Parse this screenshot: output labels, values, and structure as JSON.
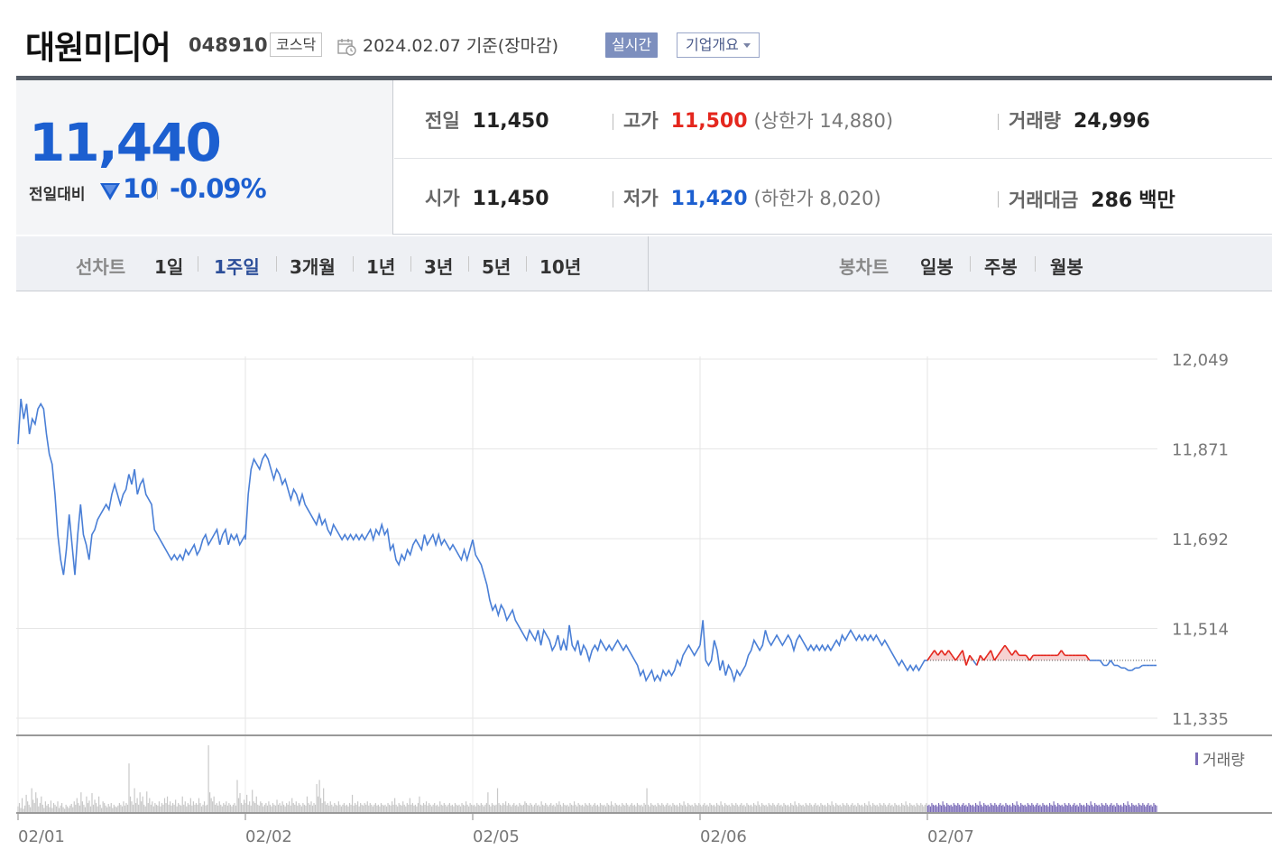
{
  "header": {
    "company_name": "대원미디어",
    "stock_code": "048910",
    "market": "코스닥",
    "date_text": "2024.02.07  기준(장마감)",
    "realtime_label": "실시간",
    "overview_label": "기업개요"
  },
  "summary": {
    "current_price": "11,440",
    "change_label": "전일대비",
    "change_amount": "10",
    "change_rate": "-0.09%",
    "prev_close_label": "전일",
    "prev_close": "11,450",
    "high_label": "고가",
    "high": "11,500",
    "upper_limit": "(상한가 14,880)",
    "volume_label": "거래량",
    "volume": "24,996",
    "open_label": "시가",
    "open": "11,450",
    "low_label": "저가",
    "low": "11,420",
    "lower_limit": "(하한가 8,020)",
    "trade_value_label": "거래대금",
    "trade_value": "286",
    "trade_value_unit": "백만",
    "colors": {
      "up": "#e4271e",
      "down": "#1c5fd0"
    }
  },
  "tabs": {
    "line_chart_label": "선차트",
    "line_periods": [
      "1일",
      "1주일",
      "3개월",
      "1년",
      "3년",
      "5년",
      "10년"
    ],
    "active_period": "1주일",
    "candle_chart_label": "봉차트",
    "candle_periods": [
      "일봉",
      "주봉",
      "월봉"
    ]
  },
  "chart_data": {
    "type": "line",
    "x_ticks": [
      "02/01",
      "02/02",
      "02/05",
      "02/06",
      "02/07"
    ],
    "y_ticks": [
      "12,049",
      "11,871",
      "11,692",
      "11,514",
      "11,335"
    ],
    "ylim": [
      11335,
      12049
    ],
    "prev_close": 11450,
    "grid": true,
    "volume_legend": "거래량",
    "colors": {
      "line": "#4a7fd6",
      "up": "#e4271e",
      "up_fill": "#f6d2d2",
      "volume": "#c8c8c8",
      "volume_today": "#7b6cb8"
    },
    "days": [
      {
        "label": "02/01",
        "prices": [
          11880,
          11970,
          11930,
          11960,
          11900,
          11930,
          11920,
          11950,
          11960,
          11950,
          11900,
          11860,
          11840,
          11780,
          11700,
          11650,
          11620,
          11670,
          11740,
          11680,
          11620,
          11700,
          11760,
          11700,
          11680,
          11650,
          11700,
          11710,
          11730,
          11740,
          11750,
          11760,
          11750,
          11780,
          11800,
          11780,
          11760,
          11780,
          11790,
          11820,
          11800,
          11830,
          11780,
          11800,
          11810,
          11780,
          11770,
          11760,
          11710,
          11700,
          11690,
          11680,
          11670,
          11660,
          11650,
          11660,
          11650,
          11660,
          11650,
          11670,
          11660,
          11670,
          11680,
          11660,
          11670,
          11690,
          11700,
          11680,
          11690,
          11700,
          11710,
          11680,
          11700,
          11710,
          11680,
          11700,
          11690,
          11700,
          11680,
          11690,
          11700
        ]
      },
      {
        "label": "02/02",
        "prices": [
          11690,
          11780,
          11830,
          11850,
          11840,
          11830,
          11850,
          11860,
          11850,
          11830,
          11810,
          11830,
          11820,
          11800,
          11810,
          11790,
          11770,
          11790,
          11780,
          11760,
          11780,
          11760,
          11750,
          11740,
          11730,
          11720,
          11740,
          11720,
          11730,
          11710,
          11700,
          11720,
          11710,
          11700,
          11690,
          11700,
          11690,
          11700,
          11690,
          11700,
          11690,
          11700,
          11690,
          11700,
          11710,
          11690,
          11710,
          11700,
          11720,
          11700,
          11710,
          11670,
          11680,
          11650,
          11640,
          11660,
          11650,
          11670,
          11660,
          11680,
          11690,
          11680,
          11670,
          11700,
          11680,
          11690,
          11700,
          11680,
          11700,
          11680,
          11690,
          11680,
          11670,
          11680,
          11670,
          11660,
          11650,
          11670,
          11650,
          11670,
          11690
        ]
      },
      {
        "label": "02/05",
        "prices": [
          11690,
          11660,
          11650,
          11640,
          11620,
          11600,
          11570,
          11550,
          11560,
          11540,
          11560,
          11550,
          11530,
          11540,
          11550,
          11530,
          11520,
          11510,
          11500,
          11490,
          11510,
          11500,
          11490,
          11510,
          11480,
          11510,
          11500,
          11490,
          11470,
          11480,
          11500,
          11470,
          11490,
          11470,
          11520,
          11480,
          11470,
          11490,
          11460,
          11480,
          11470,
          11450,
          11470,
          11480,
          11470,
          11490,
          11480,
          11470,
          11480,
          11470,
          11480,
          11490,
          11480,
          11470,
          11480,
          11470,
          11460,
          11450,
          11440,
          11420,
          11430,
          11410,
          11420,
          11430,
          11410,
          11420,
          11410,
          11430,
          11420,
          11430,
          11420,
          11430,
          11450,
          11440,
          11460,
          11470,
          11480,
          11470,
          11460,
          11470,
          11480
        ]
      },
      {
        "label": "02/06",
        "prices": [
          11480,
          11530,
          11450,
          11440,
          11450,
          11490,
          11470,
          11430,
          11450,
          11420,
          11440,
          11430,
          11410,
          11430,
          11420,
          11430,
          11440,
          11460,
          11470,
          11490,
          11480,
          11470,
          11480,
          11510,
          11490,
          11480,
          11490,
          11500,
          11490,
          11480,
          11490,
          11500,
          11490,
          11470,
          11490,
          11500,
          11490,
          11480,
          11470,
          11480,
          11470,
          11480,
          11470,
          11480,
          11470,
          11480,
          11470,
          11480,
          11490,
          11480,
          11500,
          11490,
          11500,
          11510,
          11500,
          11490,
          11500,
          11490,
          11500,
          11490,
          11500,
          11490,
          11500,
          11490,
          11480,
          11490,
          11480,
          11470,
          11460,
          11450,
          11440,
          11450,
          11440,
          11430,
          11440,
          11430,
          11440,
          11430,
          11440,
          11450,
          11450
        ]
      },
      {
        "label": "02/07",
        "prices": [
          11450,
          11460,
          11470,
          11460,
          11470,
          11460,
          11470,
          11460,
          11450,
          11460,
          11470,
          11440,
          11460,
          11450,
          11440,
          11460,
          11450,
          11460,
          11470,
          11450,
          11460,
          11470,
          11480,
          11470,
          11460,
          11470,
          11460,
          11460,
          11460,
          11450,
          11460,
          11460,
          11460,
          11460,
          11460,
          11460,
          11460,
          11460,
          11470,
          11460,
          11460,
          11460,
          11460,
          11460,
          11460,
          11460,
          11450,
          11450,
          11450,
          11450,
          11440,
          11440,
          11450,
          11440,
          11440,
          11435,
          11435,
          11430,
          11430,
          11435,
          11435,
          11440,
          11440,
          11440,
          11440,
          11440
        ]
      }
    ],
    "volume": [
      8,
      12,
      6,
      18,
      5,
      9,
      22,
      14,
      10,
      7,
      30,
      16,
      12,
      25,
      18,
      8,
      12,
      20,
      10,
      6,
      14,
      9,
      11,
      7,
      15,
      6,
      12,
      10,
      8,
      14,
      6,
      9,
      12,
      7,
      5,
      10,
      8,
      6,
      9,
      11,
      7,
      14,
      10,
      18,
      12,
      9,
      25,
      14,
      10,
      7,
      20,
      12,
      15,
      8,
      24,
      10,
      16,
      12,
      8,
      20,
      10,
      6,
      14,
      12,
      9,
      7,
      11,
      8,
      12,
      6,
      10,
      8,
      7,
      9,
      12,
      10,
      8,
      14,
      9,
      12,
      10,
      60,
      20,
      14,
      10,
      30,
      12,
      18,
      10,
      25,
      14,
      20,
      10,
      8,
      26,
      12,
      18,
      10,
      14,
      8,
      12,
      10,
      9,
      14,
      8,
      12,
      10,
      18,
      12,
      20,
      10,
      14,
      9,
      12,
      10,
      16,
      8,
      12,
      10,
      9,
      20,
      10,
      14,
      8,
      12,
      10,
      18,
      9,
      14,
      10,
      12,
      10,
      18,
      12,
      8,
      10,
      14,
      9,
      10,
      82,
      25,
      18,
      14,
      20,
      10,
      12,
      9,
      14,
      10,
      8,
      12,
      10,
      14,
      9,
      12,
      10,
      8,
      10,
      12,
      9,
      40,
      18,
      24,
      12,
      10,
      16,
      12,
      22,
      10,
      14,
      9,
      28,
      14,
      12,
      20,
      10,
      9,
      14,
      12,
      8,
      10,
      12,
      9,
      14,
      10,
      8,
      12,
      10,
      9,
      16,
      10,
      12,
      9,
      14,
      10,
      8,
      12,
      10,
      14,
      9,
      18,
      12,
      10,
      14,
      9,
      12,
      10,
      8,
      12,
      10,
      9,
      20,
      12,
      10,
      14,
      9,
      12,
      10,
      35,
      20,
      40,
      18,
      12,
      30,
      14,
      10,
      12,
      9,
      14,
      10,
      8,
      12,
      10,
      9,
      14,
      10,
      8,
      10,
      12,
      9,
      10,
      8,
      12,
      10,
      22,
      9,
      12,
      10,
      14,
      8,
      12,
      10,
      9,
      12,
      10,
      14,
      9,
      12,
      10,
      8,
      10,
      12,
      9,
      10,
      8,
      12,
      10,
      9,
      10,
      8,
      12,
      10,
      9,
      14,
      10,
      18,
      10,
      8,
      12,
      10,
      9,
      14,
      10,
      8,
      12,
      10,
      18,
      10,
      12,
      9,
      10,
      8,
      12,
      20,
      10,
      9,
      12,
      10,
      14,
      9,
      12,
      10,
      8,
      10,
      12,
      9,
      10,
      8,
      14,
      10,
      9,
      12,
      10,
      8,
      10,
      12,
      9,
      10,
      8,
      12,
      10,
      9,
      10,
      8,
      12,
      10,
      9,
      14,
      10,
      8,
      12,
      10,
      9,
      10,
      8,
      12,
      10,
      9,
      12,
      10,
      8,
      10,
      12,
      25,
      10,
      8,
      12,
      10,
      9,
      10,
      30,
      12,
      10,
      9,
      12,
      10,
      14,
      9,
      12,
      10,
      8,
      10,
      12,
      9,
      10,
      8,
      12,
      10,
      9,
      10,
      14,
      12,
      10,
      9,
      12,
      10,
      8,
      10,
      12,
      9,
      10,
      8,
      14,
      10,
      9,
      12,
      10,
      8,
      10,
      12,
      9,
      10,
      8,
      12,
      10,
      14,
      10,
      8,
      12,
      10,
      9,
      10,
      8,
      12,
      10,
      9,
      14,
      10,
      8,
      12,
      10,
      9,
      10,
      8,
      12,
      10,
      9,
      12,
      10,
      8,
      10,
      12,
      9,
      10,
      8,
      12,
      10,
      9,
      10,
      8,
      12,
      10,
      9,
      14,
      10,
      8,
      12,
      10,
      9,
      10,
      8,
      12,
      10,
      9,
      12,
      10,
      8,
      10,
      12,
      9,
      10,
      8,
      12,
      10,
      9,
      10,
      8,
      12,
      10,
      30,
      10,
      8,
      12,
      10,
      9,
      10,
      8,
      12,
      10,
      9,
      12,
      10,
      8,
      10,
      12,
      9,
      10,
      8,
      12,
      10,
      9,
      10,
      8,
      12,
      10,
      9,
      14,
      10,
      8,
      12,
      10,
      9,
      10,
      8,
      12,
      10,
      9,
      12,
      10,
      8,
      10,
      12,
      9,
      10,
      8,
      12,
      10,
      9,
      10,
      8,
      12,
      10,
      9,
      14,
      10,
      8,
      12,
      10,
      9,
      10,
      8,
      12,
      10,
      9,
      12,
      10,
      8,
      10,
      12,
      9,
      10,
      8,
      12,
      10,
      9,
      10,
      8,
      12,
      10,
      9,
      14,
      10,
      8,
      12,
      10,
      9,
      10,
      8,
      12,
      10,
      9,
      12,
      10,
      8,
      10,
      12,
      9,
      10,
      8,
      12,
      10,
      9,
      10,
      8,
      12,
      10,
      9,
      14,
      10,
      8,
      12,
      10,
      9,
      10,
      8,
      12,
      10,
      9,
      12,
      10,
      8,
      10,
      12,
      9,
      10,
      8,
      12,
      10,
      9,
      10,
      8,
      12,
      10,
      9,
      14,
      10,
      8,
      12,
      10,
      9,
      10,
      8,
      12,
      10,
      9,
      12,
      10,
      8,
      10,
      12,
      9,
      10,
      8,
      12,
      10,
      9,
      10,
      8,
      12,
      10,
      9,
      14,
      10,
      8,
      12,
      10,
      9,
      10,
      8,
      12,
      10,
      9,
      12,
      10,
      8,
      10,
      12,
      9,
      10,
      8,
      12,
      10,
      9,
      10,
      8,
      12,
      10,
      9,
      14,
      10,
      8,
      12,
      10,
      9,
      10,
      8,
      12,
      10,
      9,
      12,
      10,
      8,
      10,
      12,
      9,
      10,
      8,
      12,
      10,
      9,
      10,
      8,
      12,
      10,
      9,
      14,
      10,
      8,
      12,
      10,
      9,
      10,
      8,
      12,
      10,
      9,
      12,
      10,
      8,
      10,
      12,
      9,
      10,
      8,
      12,
      10,
      9,
      10,
      8,
      12,
      10,
      9,
      14,
      10,
      8,
      12,
      10,
      9,
      10,
      8,
      12,
      10,
      9,
      12,
      10,
      8,
      10,
      12,
      9,
      10,
      8,
      12,
      10,
      9,
      10,
      8,
      12,
      10,
      9,
      14,
      10,
      8,
      12,
      10,
      9,
      10,
      8,
      12,
      10,
      9,
      12,
      10,
      8,
      10,
      12,
      9,
      10,
      8,
      12,
      10,
      9,
      10,
      8,
      12,
      10,
      9,
      14,
      10,
      8,
      12,
      10,
      9,
      10,
      8,
      12,
      10,
      9,
      12,
      10,
      8,
      10,
      12,
      9,
      10,
      8,
      12,
      10,
      9,
      10,
      8,
      12,
      10,
      9,
      14,
      10,
      8,
      12,
      10,
      9,
      10,
      8,
      12,
      10,
      9,
      12,
      10,
      8,
      10,
      12,
      9,
      10,
      8,
      12,
      10,
      9,
      10,
      8,
      12,
      10,
      9,
      14,
      10,
      8,
      12,
      10,
      9,
      10,
      8,
      12,
      10,
      9,
      12,
      10,
      8,
      10,
      12,
      9,
      10,
      8,
      12,
      10,
      9
    ]
  }
}
